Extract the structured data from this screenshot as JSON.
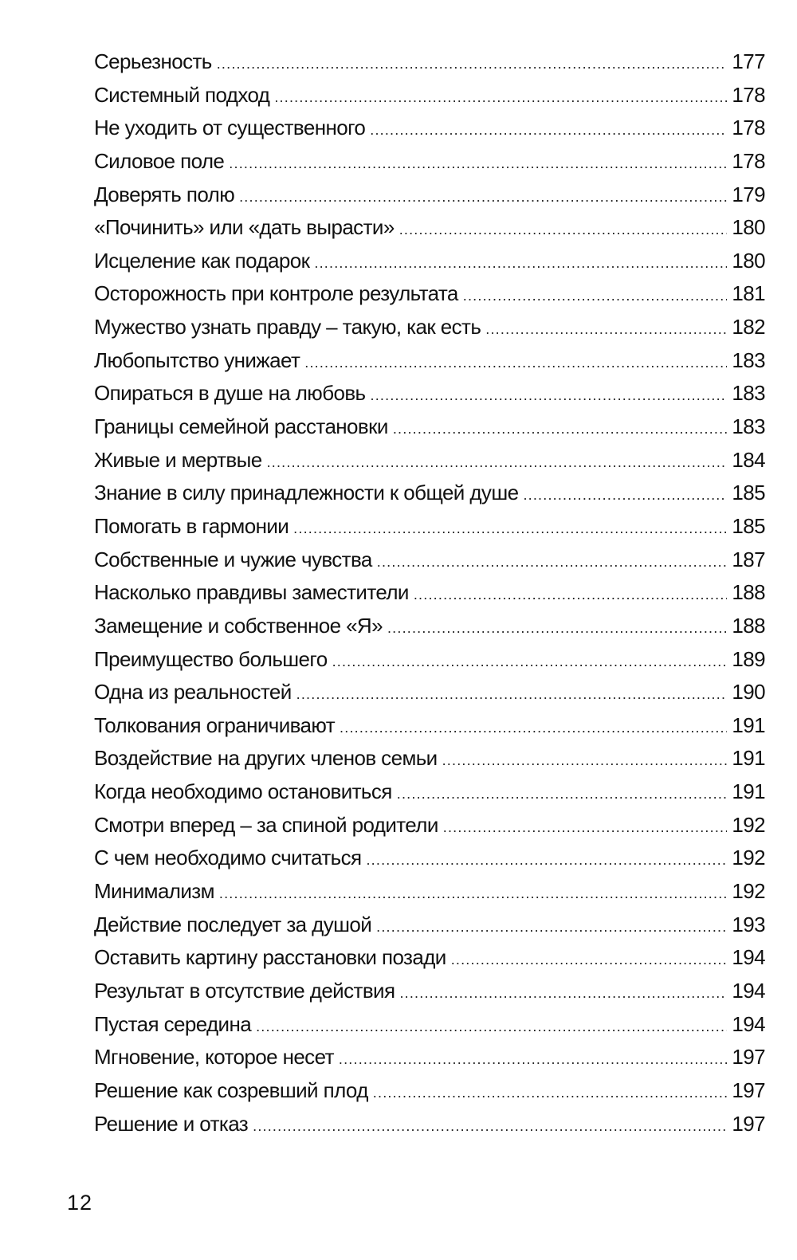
{
  "entries": [
    {
      "title": "Серьезность",
      "page": "177"
    },
    {
      "title": "Системный подход",
      "page": "178"
    },
    {
      "title": "Не уходить от существенного",
      "page": "178"
    },
    {
      "title": "Силовое поле",
      "page": "178"
    },
    {
      "title": "Доверять полю",
      "page": "179"
    },
    {
      "title": "«Починить» или «дать вырасти»",
      "page": "180"
    },
    {
      "title": "Исцеление как подарок",
      "page": "180"
    },
    {
      "title": "Осторожность при контроле результата",
      "page": "181"
    },
    {
      "title": "Мужество узнать правду – такую, как есть",
      "page": "182"
    },
    {
      "title": "Любопытство унижает",
      "page": "183"
    },
    {
      "title": "Опираться в душе на любовь",
      "page": "183"
    },
    {
      "title": "Границы семейной расстановки",
      "page": "183"
    },
    {
      "title": "Живые и мертвые",
      "page": "184"
    },
    {
      "title": "Знание в силу принадлежности к общей душе",
      "page": "185"
    },
    {
      "title": "Помогать в гармонии",
      "page": "185"
    },
    {
      "title": "Собственные и чужие чувства",
      "page": "187"
    },
    {
      "title": "Насколько правдивы заместители",
      "page": "188"
    },
    {
      "title": "Замещение и собственное «Я»",
      "page": "188"
    },
    {
      "title": "Преимущество большего",
      "page": "189"
    },
    {
      "title": "Одна из реальностей",
      "page": "190"
    },
    {
      "title": "Толкования ограничивают",
      "page": "191"
    },
    {
      "title": "Воздействие на других членов семьи",
      "page": "191"
    },
    {
      "title": "Когда необходимо остановиться",
      "page": "191"
    },
    {
      "title": "Смотри вперед – за спиной родители",
      "page": "192"
    },
    {
      "title": "С чем необходимо считаться",
      "page": "192"
    },
    {
      "title": "Минимализм",
      "page": "192"
    },
    {
      "title": "Действие последует за душой",
      "page": "193"
    },
    {
      "title": "Оставить картину расстановки позади",
      "page": "194"
    },
    {
      "title": "Результат в отсутствие действия",
      "page": "194"
    },
    {
      "title": "Пустая середина",
      "page": "194"
    },
    {
      "title": "Мгновение, которое несет",
      "page": "197"
    },
    {
      "title": "Решение как созревший плод",
      "page": "197"
    },
    {
      "title": "Решение и отказ",
      "page": "197"
    }
  ],
  "folio": "12"
}
